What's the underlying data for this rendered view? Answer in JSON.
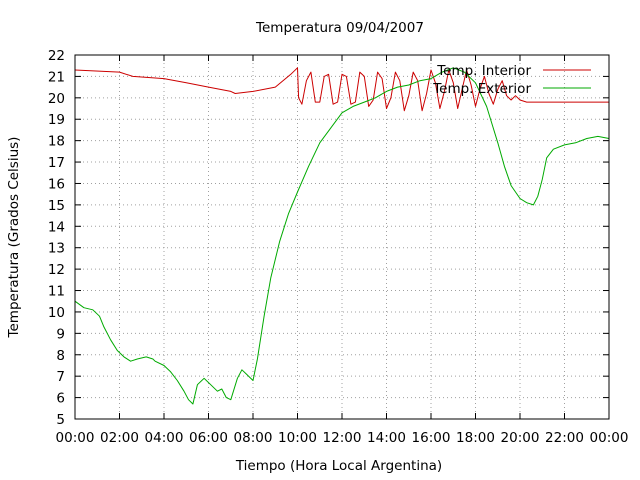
{
  "chart_data": {
    "type": "line",
    "title": "Temperatura 09/04/2007",
    "xlabel": "Tiempo (Hora Local Argentina)",
    "ylabel": "Temperatura (Grados Celsius)",
    "xlim": [
      0,
      24
    ],
    "ylim": [
      5,
      22
    ],
    "x_tick_labels": [
      "00:00",
      "02:00",
      "04:00",
      "06:00",
      "08:00",
      "10:00",
      "12:00",
      "14:00",
      "16:00",
      "18:00",
      "20:00",
      "22:00",
      "00:00"
    ],
    "y_ticks": [
      5,
      6,
      7,
      8,
      9,
      10,
      11,
      12,
      13,
      14,
      15,
      16,
      17,
      18,
      19,
      20,
      21,
      22
    ],
    "grid": true,
    "legend_position": "top-right",
    "series": [
      {
        "name": "Temp. Interior",
        "color": "#cc0000",
        "x": [
          0,
          2,
          2.6,
          4,
          5,
          6,
          7,
          7.2,
          8,
          9,
          9.7,
          10,
          10.05,
          10.2,
          10.4,
          10.6,
          10.8,
          11,
          11.2,
          11.4,
          11.6,
          11.8,
          12,
          12.2,
          12.4,
          12.6,
          12.8,
          13,
          13.2,
          13.4,
          13.6,
          13.8,
          14,
          14.2,
          14.4,
          14.6,
          14.8,
          15,
          15.2,
          15.4,
          15.6,
          15.8,
          16,
          16.2,
          16.4,
          16.6,
          16.8,
          17,
          17.2,
          17.4,
          17.6,
          17.8,
          18,
          18.2,
          18.4,
          18.6,
          18.8,
          19,
          19.2,
          19.4,
          19.6,
          19.8,
          20,
          20.3,
          21,
          22,
          23,
          24
        ],
        "y": [
          21.3,
          21.2,
          21.0,
          20.9,
          20.7,
          20.5,
          20.3,
          20.2,
          20.3,
          20.5,
          21.1,
          21.4,
          20.0,
          19.7,
          20.8,
          21.2,
          19.8,
          19.8,
          21.0,
          21.1,
          19.7,
          19.8,
          21.1,
          21.0,
          19.7,
          19.8,
          21.2,
          21.0,
          19.6,
          19.9,
          21.2,
          20.9,
          19.5,
          20.0,
          21.2,
          20.8,
          19.4,
          20.1,
          21.2,
          20.8,
          19.4,
          20.2,
          21.3,
          20.7,
          19.5,
          20.3,
          21.3,
          20.7,
          19.5,
          20.4,
          21.3,
          20.6,
          19.6,
          20.4,
          21.0,
          20.2,
          19.7,
          20.4,
          20.8,
          20.1,
          19.9,
          20.1,
          19.9,
          19.8,
          19.8,
          19.8,
          19.8,
          19.8
        ]
      },
      {
        "name": "Temp. Exterior",
        "color": "#00aa00",
        "x": [
          0,
          0.4,
          0.8,
          1.1,
          1.3,
          1.6,
          1.9,
          2.2,
          2.5,
          2.8,
          3.2,
          3.5,
          3.6,
          4.0,
          4.3,
          4.6,
          4.9,
          5.1,
          5.3,
          5.5,
          5.8,
          6.1,
          6.4,
          6.6,
          6.8,
          7.0,
          7.3,
          7.5,
          7.7,
          8.0,
          8.2,
          8.5,
          8.8,
          9.2,
          9.6,
          10.0,
          10.5,
          11.0,
          11.5,
          12.0,
          12.5,
          13.0,
          13.5,
          14.0,
          14.5,
          15.0,
          15.5,
          16.0,
          16.5,
          17.0,
          17.5,
          18.0,
          18.5,
          19.0,
          19.3,
          19.6,
          20.0,
          20.3,
          20.6,
          20.8,
          21.0,
          21.2,
          21.5,
          22.0,
          22.5,
          23.0,
          23.5,
          24.0
        ],
        "y": [
          10.5,
          10.2,
          10.1,
          9.8,
          9.3,
          8.7,
          8.2,
          7.9,
          7.7,
          7.8,
          7.9,
          7.8,
          7.7,
          7.5,
          7.2,
          6.8,
          6.3,
          5.9,
          5.7,
          6.6,
          6.9,
          6.6,
          6.3,
          6.4,
          6.0,
          5.9,
          6.9,
          7.3,
          7.1,
          6.8,
          7.8,
          9.8,
          11.6,
          13.3,
          14.6,
          15.6,
          16.8,
          17.9,
          18.6,
          19.3,
          19.6,
          19.8,
          20.0,
          20.3,
          20.5,
          20.6,
          20.8,
          20.9,
          21.2,
          21.4,
          21.2,
          20.7,
          19.6,
          17.9,
          16.8,
          15.9,
          15.3,
          15.1,
          15.0,
          15.4,
          16.2,
          17.2,
          17.6,
          17.8,
          17.9,
          18.1,
          18.2,
          18.1
        ]
      }
    ]
  }
}
